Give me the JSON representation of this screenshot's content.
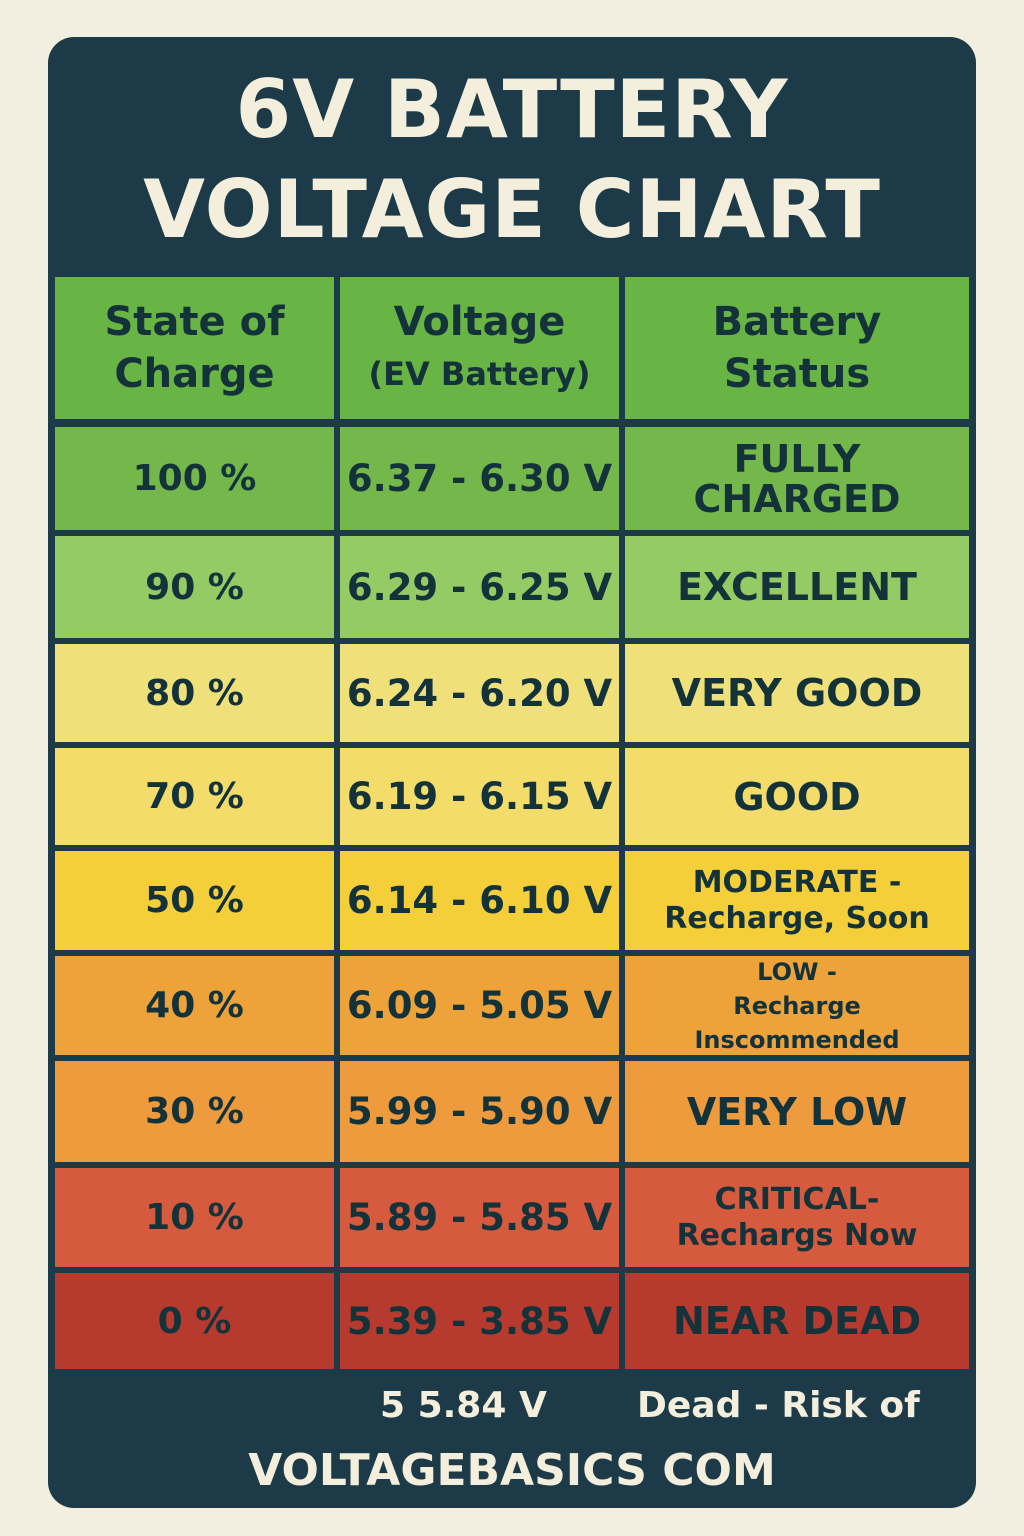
{
  "title_line1": "6V BATTERY",
  "title_line2": "VOLTAGE CHART",
  "headers": {
    "charge": [
      "State of",
      "Charge"
    ],
    "voltage": [
      "Voltage",
      "(EV Battery)"
    ],
    "status": [
      "Battery",
      "Status"
    ]
  },
  "header_color": "#68b444",
  "chart_data": {
    "type": "table",
    "columns": [
      "State of Charge",
      "Voltage (EV Battery)",
      "Battery Status"
    ],
    "rows": [
      {
        "charge": "100 %",
        "voltage": "6.37 - 6.30 V",
        "status": [
          "FULLY",
          "CHARGED"
        ],
        "color": "#74b84c"
      },
      {
        "charge": "90 %",
        "voltage": "6.29 - 6.25 V",
        "status": [
          "EXCELLENT"
        ],
        "color": "#95cb64"
      },
      {
        "charge": "80 %",
        "voltage": "6.24 - 6.20 V",
        "status": [
          "VERY GOOD"
        ],
        "color": "#efe07a"
      },
      {
        "charge": "70 %",
        "voltage": "6.19 - 6.15 V",
        "status": [
          "GOOD"
        ],
        "color": "#f3dc6a"
      },
      {
        "charge": "50 %",
        "voltage": "6.14 - 6.10 V",
        "status": [
          "MODERATE -",
          "Recharge, Soon"
        ],
        "color": "#f4cf3a"
      },
      {
        "charge": "40 %",
        "voltage": "6.09 - 5.05 V",
        "status": [
          "LOW -",
          "Recharge Inscommended"
        ],
        "color": "#eda23a"
      },
      {
        "charge": "30 %",
        "voltage": "5.99 - 5.90 V",
        "status": [
          "VERY LOW"
        ],
        "color": "#ee9b3e"
      },
      {
        "charge": "10 %",
        "voltage": "5.89 - 5.85 V",
        "status": [
          "CRITICAL-",
          "Rechargs Now"
        ],
        "color": "#d65a3e"
      },
      {
        "charge": "0 %",
        "voltage": "5.39 - 3.85 V",
        "status": [
          "NEAR DEAD"
        ],
        "color": "#b63a2e"
      }
    ]
  },
  "footer": {
    "voltage": "5 5.84 V",
    "note": "Dead - Risk of",
    "site": "VOLTAGEBASICS COM"
  }
}
